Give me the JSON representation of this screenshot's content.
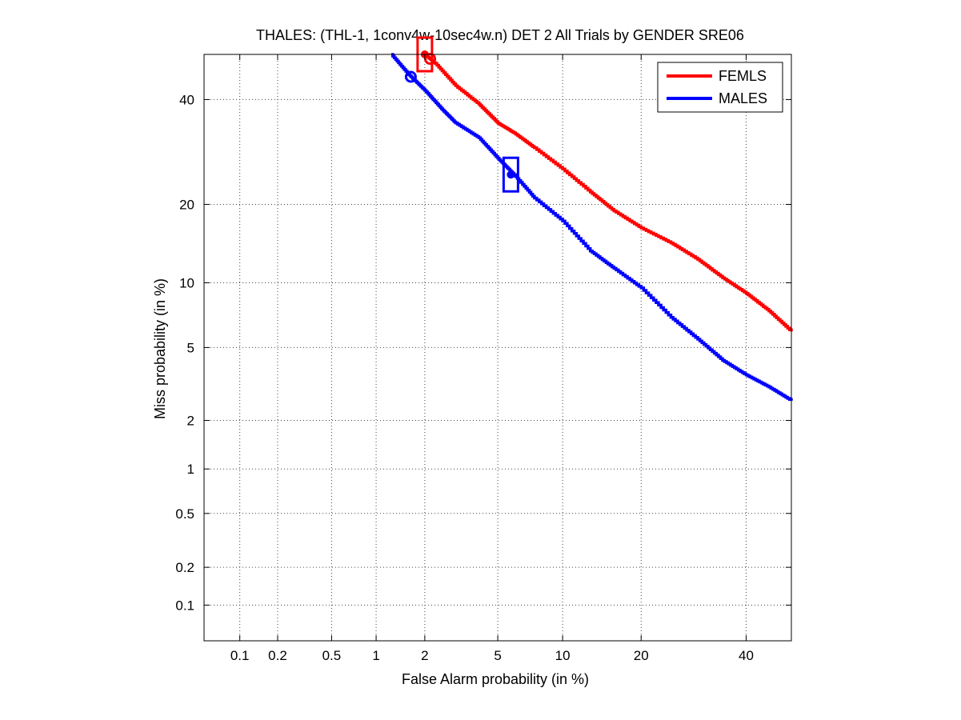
{
  "chart_data": {
    "type": "line",
    "title": "THALES: (THL-1, 1conv4w-10sec4w.n) DET 2 All Trials by GENDER SRE06",
    "xlabel": "False Alarm probability (in %)",
    "ylabel": "Miss probability (in %)",
    "x_scale": "normal-deviate (probit)",
    "y_scale": "normal-deviate (probit)",
    "xlim": [
      0.05,
      50
    ],
    "ylim": [
      0.05,
      50
    ],
    "x_ticks": [
      0.1,
      0.2,
      0.5,
      1,
      2,
      5,
      10,
      20,
      40
    ],
    "x_tick_labels": [
      "0.1",
      "0.2",
      "0.5",
      "1",
      "2",
      "5",
      "10",
      "20",
      "40"
    ],
    "y_ticks": [
      0.1,
      0.2,
      0.5,
      1,
      2,
      5,
      10,
      20,
      40
    ],
    "y_tick_labels": [
      "0.1",
      "0.2",
      "0.5",
      "1",
      "2",
      "5",
      "10",
      "20",
      "40"
    ],
    "grid": true,
    "legend_position": "top-right",
    "series": [
      {
        "name": "FEMLS",
        "color": "#ff0000",
        "x": [
          2.0,
          2.3,
          3.0,
          4.0,
          5.0,
          6.0,
          7.5,
          10.0,
          13.0,
          16.0,
          20.0,
          25.0,
          30.0,
          35.0,
          40.0,
          45.0,
          50.0
        ],
        "y": [
          50.0,
          48.0,
          43.0,
          39.0,
          35.0,
          33.0,
          30.0,
          26.0,
          22.0,
          19.0,
          16.5,
          14.5,
          12.5,
          10.5,
          9.0,
          7.5,
          6.0
        ],
        "min_dcf_point": [
          2.15,
          49.0
        ],
        "act_dcf_point": [
          2.0,
          50.0
        ]
      },
      {
        "name": "MALES",
        "color": "#0000ff",
        "x": [
          1.25,
          1.6,
          2.0,
          2.5,
          3.0,
          4.0,
          5.0,
          6.0,
          7.5,
          10.0,
          13.0,
          16.0,
          20.0,
          25.0,
          30.0,
          35.0,
          40.0,
          45.0,
          50.0
        ],
        "y": [
          50.0,
          45.5,
          42.0,
          38.0,
          35.0,
          32.0,
          28.0,
          25.0,
          21.0,
          17.5,
          13.5,
          11.5,
          9.5,
          7.0,
          5.5,
          4.3,
          3.6,
          3.1,
          2.6
        ],
        "min_dcf_point": [
          1.65,
          45.0
        ],
        "act_dcf_point": [
          5.8,
          25.0
        ]
      }
    ]
  }
}
